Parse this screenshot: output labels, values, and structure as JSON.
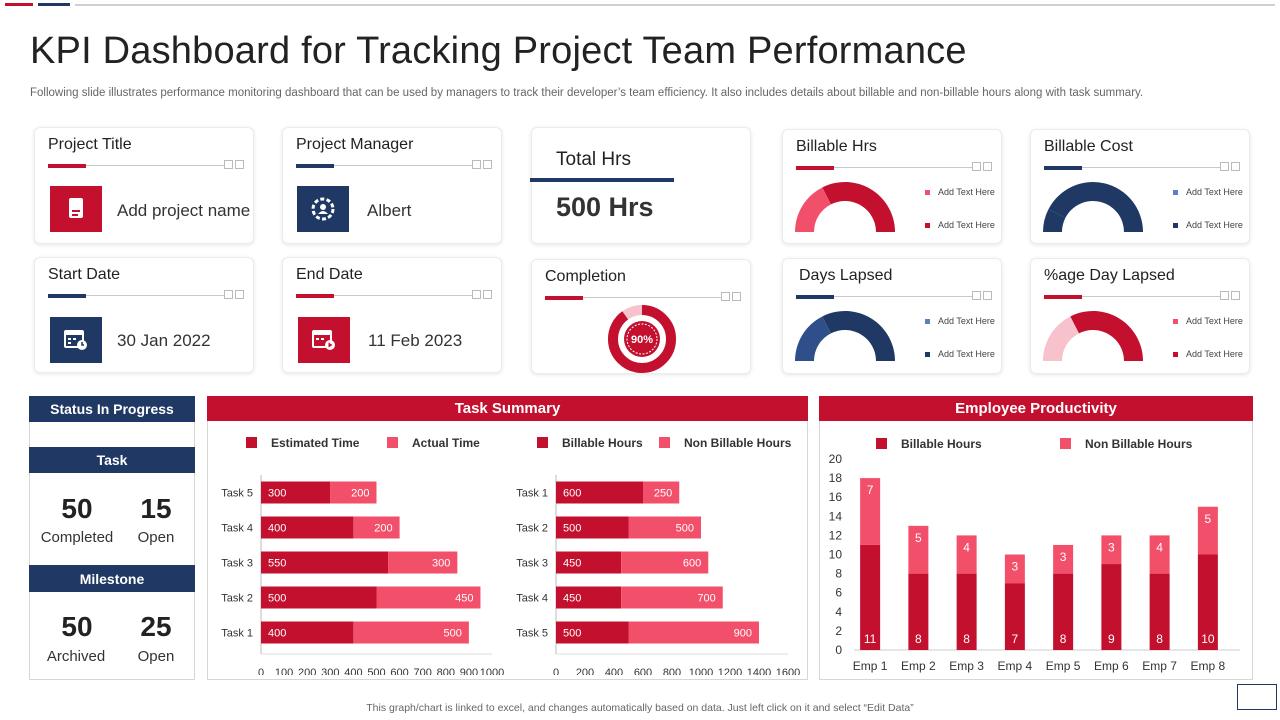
{
  "header": {
    "title": "KPI Dashboard for Tracking Project Team Performance",
    "subtitle": "Following slide illustrates performance monitoring dashboard that can be used by managers to track their developer’s team efficiency. It also includes details about billable and non-billable hours along with task summary."
  },
  "colors": {
    "red": "#c3102f",
    "pink": "#f2506a",
    "light_pink": "#f7c2cc",
    "navy": "#203864",
    "navy_light": "#5b7fbf"
  },
  "cards": {
    "project_title": {
      "label": "Project Title",
      "value": "Add project name",
      "icon": "document-icon"
    },
    "project_manager": {
      "label": "Project Manager",
      "value": "Albert",
      "icon": "gear-user-icon"
    },
    "total_hrs": {
      "label": "Total Hrs",
      "value": "500 Hrs"
    },
    "start_date": {
      "label": "Start Date",
      "value": "30 Jan 2022",
      "icon": "calendar-clock-icon"
    },
    "end_date": {
      "label": "End Date",
      "value": "11 Feb 2023",
      "icon": "calendar-play-icon"
    },
    "completion": {
      "label": "Completion",
      "value": "90%",
      "percent": 90
    },
    "billable_hrs": {
      "label": "Billable Hrs",
      "legend": [
        "Add Text Here",
        "Add Text Here"
      ],
      "fraction": 0.35
    },
    "billable_cost": {
      "label": "Billable Cost",
      "legend": [
        "Add Text Here",
        "Add Text Here"
      ],
      "fraction": 0.15
    },
    "days_lapsed": {
      "label": "Days Lapsed",
      "legend": [
        "Add Text Here",
        "Add Text Here"
      ],
      "fraction": 0.35
    },
    "pct_day_lapsed": {
      "label": "%age Day Lapsed",
      "legend": [
        "Add Text Here",
        "Add Text Here"
      ],
      "fraction": 0.35
    }
  },
  "status": {
    "title": "Status In Progress",
    "task": {
      "label": "Task",
      "completed_value": "50",
      "completed_label": "Completed",
      "open_value": "15",
      "open_label": "Open"
    },
    "milestone": {
      "label": "Milestone",
      "archived_value": "50",
      "archived_label": "Archived",
      "open_value": "25",
      "open_label": "Open"
    }
  },
  "task_summary_title": "Task Summary",
  "employee_productivity_title": "Employee Productivity",
  "footer": "This graph/chart is linked to excel, and changes automatically based on data. Just left click on it and select “Edit Data”",
  "chart_data": [
    {
      "type": "bar",
      "orientation": "horizontal",
      "stacked": true,
      "title": "Task Summary",
      "categories": [
        "Task 1",
        "Task 2",
        "Task 3",
        "Task 4",
        "Task 5"
      ],
      "series": [
        {
          "name": "Estimated Time",
          "values": [
            400,
            500,
            550,
            400,
            300
          ]
        },
        {
          "name": "Actual Time",
          "values": [
            500,
            450,
            300,
            200,
            200
          ]
        }
      ],
      "xlim": [
        0,
        1000
      ],
      "xticks": [
        "0",
        "100",
        "200",
        "300",
        "400",
        "500",
        "600",
        "700",
        "800",
        "900",
        "1000"
      ]
    },
    {
      "type": "bar",
      "orientation": "horizontal",
      "stacked": true,
      "title": "Task Summary",
      "categories": [
        "Task 5",
        "Task 4",
        "Task 3",
        "Task 2",
        "Task 1"
      ],
      "series": [
        {
          "name": "Billable Hours",
          "values": [
            500,
            450,
            450,
            500,
            600
          ]
        },
        {
          "name": "Non Billable Hours",
          "values": [
            900,
            700,
            600,
            500,
            250
          ]
        }
      ],
      "xlim": [
        0,
        1600
      ],
      "xticks": [
        "0",
        "200",
        "400",
        "600",
        "800",
        "1000",
        "1200",
        "1400",
        "1600"
      ]
    },
    {
      "type": "bar",
      "orientation": "vertical",
      "stacked": true,
      "title": "Employee Productivity",
      "categories": [
        "Emp 1",
        "Emp 2",
        "Emp 3",
        "Emp 4",
        "Emp 5",
        "Emp 6",
        "Emp 7",
        "Emp 8"
      ],
      "series": [
        {
          "name": "Billable Hours",
          "values": [
            11,
            8,
            8,
            7,
            8,
            9,
            8,
            10
          ]
        },
        {
          "name": "Non Billable Hours",
          "values": [
            7,
            5,
            4,
            3,
            3,
            3,
            4,
            5
          ]
        }
      ],
      "ylim": [
        0,
        20
      ],
      "yticks": [
        "0",
        "2",
        "4",
        "6",
        "8",
        "10",
        "12",
        "14",
        "16",
        "18",
        "20"
      ]
    }
  ]
}
